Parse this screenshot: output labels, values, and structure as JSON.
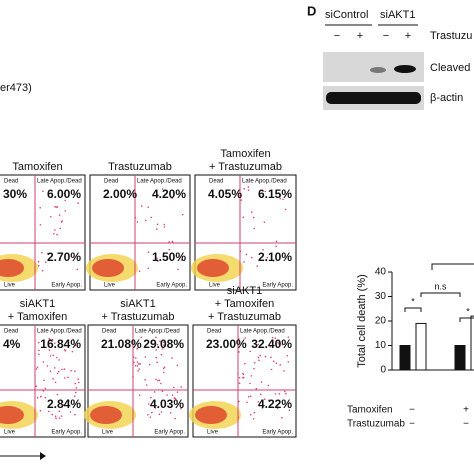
{
  "panel_d": {
    "label": "D",
    "groups": [
      "siControl",
      "siAKT1"
    ],
    "treatment": "Trastuzu",
    "signs": [
      "−",
      "+",
      "−",
      "+"
    ],
    "blots": [
      "Cleaved",
      "β-actin"
    ]
  },
  "fragment": "er473)",
  "quadrant_labels": {
    "dead": "Dead",
    "late": "Late Apop./Dead",
    "live": "Live",
    "early": "Early Apop."
  },
  "flow": {
    "row1": [
      {
        "title": [
          "Tamoxifen"
        ],
        "dead": "30%",
        "late": "6.00%",
        "early": "2.70%"
      },
      {
        "title": [
          "Trastuzumab"
        ],
        "dead": "2.00%",
        "late": "4.20%",
        "early": "1.50%"
      },
      {
        "title": [
          "Tamoxifen",
          "+ Trastuzumab"
        ],
        "dead": "4.05%",
        "late": "6.15%",
        "early": "2.10%"
      }
    ],
    "row2": [
      {
        "title": [
          "siAKT1",
          "+ Tamoxifen"
        ],
        "dead": "4%",
        "late": "16.84%",
        "early": "2.84%"
      },
      {
        "title": [
          "siAKT1",
          "+ Trastuzumab"
        ],
        "dead": "21.08%",
        "late": "29.08%",
        "early": "4.03%"
      },
      {
        "title": [
          "siAKT1",
          "+ Tamoxifen",
          "+ Trastuzumab"
        ],
        "dead": "23.00%",
        "late": "32.40%",
        "early": "4.22%"
      }
    ]
  },
  "bar_chart": {
    "y_label": "Total cell death (%)",
    "ylim": [
      0,
      40
    ],
    "yticks": [
      0,
      10,
      20,
      30,
      40
    ],
    "values": [
      10,
      19,
      10,
      22
    ],
    "colors": [
      "#111111",
      "#ffffff",
      "#111111",
      "#ffffff"
    ],
    "significance": [
      "*",
      "n.s",
      "*"
    ],
    "rows": [
      {
        "label": "Tamoxifen",
        "signs": [
          "−",
          "+"
        ]
      },
      {
        "label": "Trastuzumab",
        "signs": [
          "−",
          "−"
        ]
      }
    ]
  }
}
